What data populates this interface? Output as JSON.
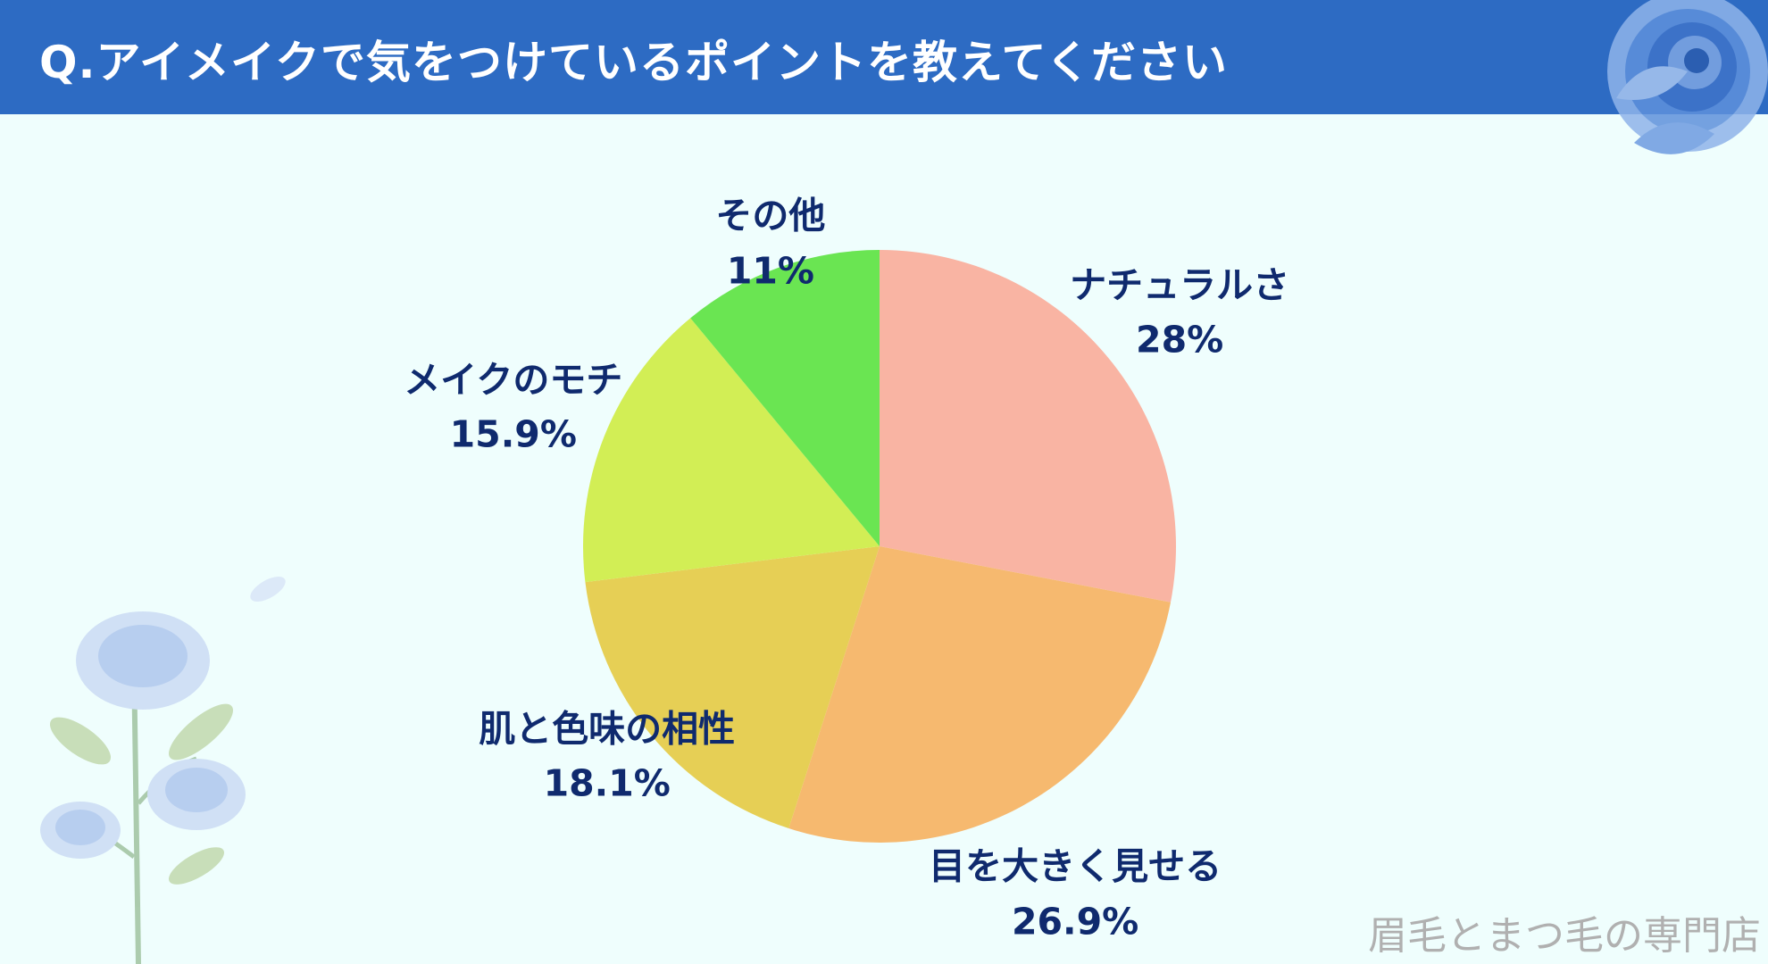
{
  "header": {
    "title": "Q.アイメイクで気をつけているポイントを教えてください"
  },
  "chart_data": {
    "type": "pie",
    "title": "",
    "slices": [
      {
        "label": "ナチュラルさ",
        "value": 28,
        "display": "28%",
        "color": "#f9b4a3"
      },
      {
        "label": "目を大きく見せる",
        "value": 26.9,
        "display": "26.9%",
        "color": "#f6b96f"
      },
      {
        "label": "肌と色味の相性",
        "value": 18.1,
        "display": "18.1%",
        "color": "#e6cf55"
      },
      {
        "label": "メイクのモチ",
        "value": 15.9,
        "display": "15.9%",
        "color": "#d2ee55"
      },
      {
        "label": "その他",
        "value": 11,
        "display": "11%",
        "color": "#6ae552"
      }
    ],
    "start_angle_deg": 0,
    "direction": "clockwise",
    "legend": "none"
  },
  "watermark": "眉毛とまつ毛の専門店"
}
